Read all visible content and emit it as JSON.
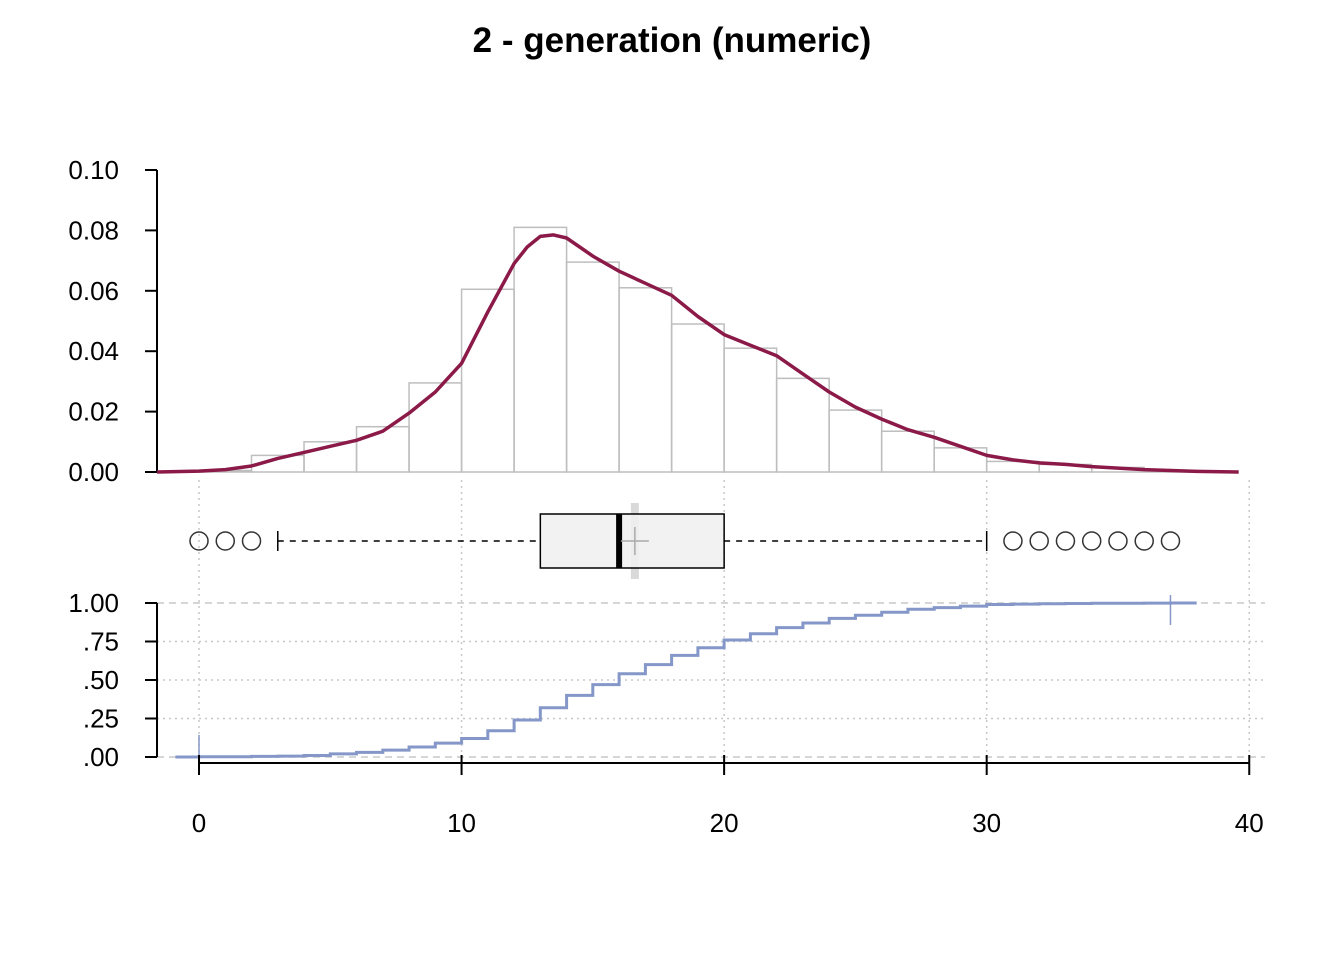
{
  "title": "2 - generation (numeric)",
  "colors": {
    "density": "#8B1A48",
    "histogram_stroke": "#BEBEBE",
    "ecdf": "#8497C8",
    "box_fill": "#F0F0F0",
    "grid": "#C8C8C8"
  },
  "chart_data": {
    "type": "histogram+density+boxplot+ecdf",
    "x_axis": {
      "ticks": [
        0,
        10,
        20,
        30,
        40
      ],
      "tick_labels": [
        "0",
        "10",
        "20",
        "30",
        "40"
      ],
      "range": [
        -1.6,
        40.6
      ],
      "grid": true
    },
    "histogram": {
      "ylim": [
        0,
        0.1
      ],
      "y_ticks": [
        0,
        0.02,
        0.04,
        0.06,
        0.08,
        0.1
      ],
      "y_tick_labels": [
        "0.00",
        "0.02",
        "0.04",
        "0.06",
        "0.08",
        "0.10"
      ],
      "bin_edges": [
        0,
        2,
        4,
        6,
        8,
        10,
        12,
        14,
        16,
        18,
        20,
        22,
        24,
        26,
        28,
        30,
        32,
        34,
        36,
        38
      ],
      "densities": [
        0.0005,
        0.0055,
        0.01,
        0.015,
        0.0295,
        0.0605,
        0.081,
        0.0695,
        0.061,
        0.049,
        0.041,
        0.031,
        0.0205,
        0.0135,
        0.008,
        0.0035,
        0.0025,
        0.0015,
        0.0005
      ]
    },
    "density": {
      "x": [
        -1.6,
        0,
        1,
        2,
        3,
        4,
        5,
        6,
        7,
        8,
        9,
        10,
        11,
        12,
        12.5,
        13,
        13.5,
        14,
        14.5,
        15,
        16,
        17,
        18,
        19,
        20,
        21,
        22,
        23,
        24,
        25,
        26,
        27,
        28,
        29,
        30,
        31,
        32,
        33,
        34,
        35,
        36,
        37,
        38,
        39.6
      ],
      "y": [
        0,
        0.0003,
        0.0008,
        0.002,
        0.0045,
        0.0065,
        0.0085,
        0.0105,
        0.0135,
        0.0195,
        0.0265,
        0.036,
        0.053,
        0.069,
        0.0745,
        0.078,
        0.0785,
        0.0775,
        0.0745,
        0.0715,
        0.0665,
        0.0625,
        0.0585,
        0.0515,
        0.0455,
        0.042,
        0.0385,
        0.0325,
        0.0265,
        0.0215,
        0.0175,
        0.014,
        0.0115,
        0.0085,
        0.0055,
        0.004,
        0.003,
        0.0025,
        0.0018,
        0.0013,
        0.0008,
        0.0005,
        0.0002,
        0
      ]
    },
    "boxplot": {
      "min_whisker": 3,
      "q1": 13,
      "median": 16,
      "q3": 20,
      "max_whisker": 30,
      "mean": 16.6,
      "outliers": [
        0,
        1,
        2,
        31,
        32,
        33,
        34,
        35,
        36,
        37
      ]
    },
    "ecdf": {
      "ylim": [
        0,
        1
      ],
      "y_ticks": [
        0,
        0.25,
        0.5,
        0.75,
        1.0
      ],
      "y_tick_labels": [
        ".00",
        ".25",
        ".50",
        ".75",
        "1.00"
      ],
      "x": [
        0,
        1,
        2,
        3,
        4,
        5,
        6,
        7,
        8,
        9,
        10,
        11,
        12,
        13,
        14,
        15,
        16,
        17,
        18,
        19,
        20,
        21,
        22,
        23,
        24,
        25,
        26,
        27,
        28,
        29,
        30,
        31,
        32,
        33,
        34,
        35,
        36,
        37
      ],
      "y": [
        0.001,
        0.002,
        0.004,
        0.006,
        0.01,
        0.02,
        0.03,
        0.045,
        0.065,
        0.09,
        0.12,
        0.17,
        0.24,
        0.32,
        0.4,
        0.47,
        0.54,
        0.6,
        0.66,
        0.71,
        0.76,
        0.8,
        0.84,
        0.87,
        0.9,
        0.92,
        0.94,
        0.96,
        0.97,
        0.98,
        0.99,
        0.993,
        0.995,
        0.997,
        0.998,
        0.999,
        0.9995,
        1.0
      ],
      "reference_lines": [
        0,
        1
      ]
    }
  }
}
